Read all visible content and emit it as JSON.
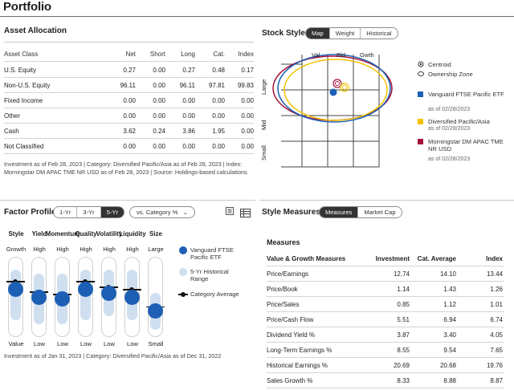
{
  "page": {
    "title": "Portfolio"
  },
  "asset_allocation": {
    "title": "Asset Allocation",
    "headers": [
      "Asset Class",
      "Net",
      "Short",
      "Long",
      "Cat.",
      "Index"
    ],
    "rows": [
      {
        "label": "U.S. Equity",
        "net": "0.27",
        "short": "0.00",
        "long": "0.27",
        "cat": "0.48",
        "index": "0.17"
      },
      {
        "label": "Non-U.S. Equity",
        "net": "96.11",
        "short": "0.00",
        "long": "96.11",
        "cat": "97.81",
        "index": "99.83"
      },
      {
        "label": "Fixed Income",
        "net": "0.00",
        "short": "0.00",
        "long": "0.00",
        "cat": "0.00",
        "index": "0.00"
      },
      {
        "label": "Other",
        "net": "0.00",
        "short": "0.00",
        "long": "0.00",
        "cat": "0.00",
        "index": "0.00"
      },
      {
        "label": "Cash",
        "net": "3.62",
        "short": "0.24",
        "long": "3.86",
        "cat": "1.95",
        "index": "0.00"
      },
      {
        "label": "Not Classified",
        "net": "0.00",
        "short": "0.00",
        "long": "0.00",
        "cat": "0.00",
        "index": "0.00"
      }
    ],
    "note": "Investment as of Feb 28, 2023 | Category: Diversified Pacific/Asia as of Feb 28, 2023 | Index: Morningstar DM APAC TME NR USD as of Feb 28, 2023 | Source: Holdings-based calculations."
  },
  "stock_style": {
    "title": "Stock Style",
    "tabs": [
      "Map",
      "Weight",
      "Historical"
    ],
    "active_tab": "Map",
    "col_labels": [
      "Val",
      "Bld",
      "Gwth"
    ],
    "row_labels": [
      "Large",
      "Mid",
      "Small"
    ],
    "legend_markers": [
      {
        "label": "Centroid",
        "icon": "centroid-icon"
      },
      {
        "label": "Ownership Zone",
        "icon": "ownership-zone-icon"
      }
    ],
    "legend": [
      {
        "name": "Vanguard FTSE Pacific ETF",
        "date": "as of 02/28/2023",
        "color": "#1d5fb4"
      },
      {
        "name": "Diversified Pacific/Asia",
        "date": "as of 02/28/2023",
        "color": "#f2c200"
      },
      {
        "name": "Morningstar DM APAC TME NR USD",
        "date": "as of 02/28/2023",
        "color": "#a5123a"
      }
    ]
  },
  "factor_profile": {
    "title": "Factor Profile",
    "periods": [
      "1-Yr",
      "3-Yr",
      "5-Yr"
    ],
    "active_period": "5-Yr",
    "dropdown": "vs. Category %",
    "factors": [
      {
        "name": "Style",
        "top": "Growth",
        "bottom": "Value",
        "value": 0.4,
        "range": [
          0.15,
          0.8
        ],
        "category": 0.3
      },
      {
        "name": "Yield",
        "top": "High",
        "bottom": "Low",
        "value": 0.5,
        "range": [
          0.2,
          0.85
        ],
        "category": 0.43
      },
      {
        "name": "Momentum",
        "top": "High",
        "bottom": "Low",
        "value": 0.53,
        "range": [
          0.2,
          0.85
        ],
        "category": 0.46
      },
      {
        "name": "Quality",
        "top": "High",
        "bottom": "Low",
        "value": 0.4,
        "range": [
          0.15,
          0.8
        ],
        "category": 0.3
      },
      {
        "name": "Volatility",
        "top": "High",
        "bottom": "Low",
        "value": 0.45,
        "range": [
          0.15,
          0.75
        ],
        "category": 0.37
      },
      {
        "name": "Liquidity",
        "top": "High",
        "bottom": "Low",
        "value": 0.5,
        "range": [
          0.15,
          0.8
        ],
        "category": 0.4
      },
      {
        "name": "Size",
        "top": "Large",
        "bottom": "Small",
        "value": 0.68,
        "range": [
          0.45,
          0.92
        ],
        "category": 0.62
      }
    ],
    "legend": [
      {
        "label": "Vanguard FTSE Pacific ETF",
        "color": "#1d5fb4"
      },
      {
        "label": "5-Yr Historical Range",
        "color": "#cfdff0"
      },
      {
        "label": "Category Average",
        "color": "#111111"
      }
    ],
    "note": "Investment as of Jan 31, 2023 | Category: Diversified Pacific/Asia as of Dec 31, 2022"
  },
  "style_measures": {
    "title": "Style Measures",
    "tabs": [
      "Measures",
      "Market Cap"
    ],
    "active_tab": "Measures",
    "subtitle": "Measures",
    "headers": [
      "Value & Growth Measures",
      "Investment",
      "Cat. Average",
      "Index"
    ],
    "rows": [
      {
        "label": "Price/Earnings",
        "investment": "12.74",
        "cat": "14.10",
        "index": "13.44"
      },
      {
        "label": "Price/Book",
        "investment": "1.14",
        "cat": "1.43",
        "index": "1.26"
      },
      {
        "label": "Price/Sales",
        "investment": "0.85",
        "cat": "1.12",
        "index": "1.01"
      },
      {
        "label": "Price/Cash Flow",
        "investment": "5.51",
        "cat": "6.94",
        "index": "6.74"
      },
      {
        "label": "Dividend Yield %",
        "investment": "3.87",
        "cat": "3.40",
        "index": "4.05"
      },
      {
        "label": "Long-Term Earnings %",
        "investment": "8.55",
        "cat": "9.54",
        "index": "7.65"
      },
      {
        "label": "Historical Earnings %",
        "investment": "20.69",
        "cat": "20.68",
        "index": "19.76"
      },
      {
        "label": "Sales Growth %",
        "investment": "8.33",
        "cat": "8.88",
        "index": "8.87"
      }
    ]
  }
}
